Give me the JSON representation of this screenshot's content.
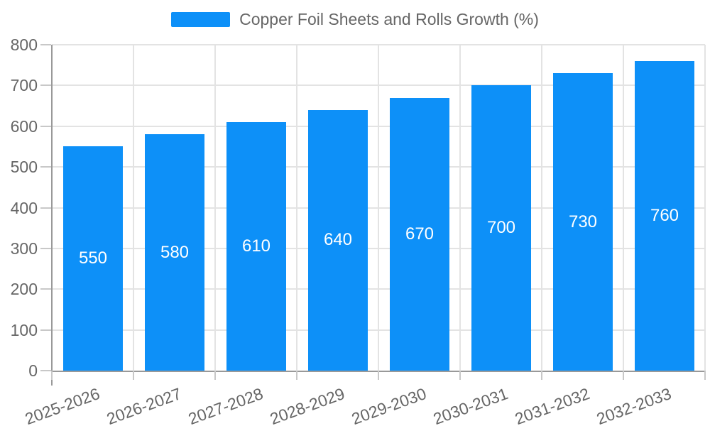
{
  "chart_data": {
    "type": "bar",
    "title": "Copper Foil Sheets and Rolls Growth (%)",
    "categories": [
      "2025-2026",
      "2026-2027",
      "2027-2028",
      "2028-2029",
      "2029-2030",
      "2030-2031",
      "2031-2032",
      "2032-2033"
    ],
    "values": [
      550,
      580,
      610,
      640,
      670,
      700,
      730,
      760
    ],
    "xlabel": "",
    "ylabel": "",
    "ylim": [
      0,
      800
    ],
    "ytick_interval": 100,
    "ytick_labels": [
      "0",
      "100",
      "200",
      "300",
      "400",
      "500",
      "600",
      "700",
      "800"
    ],
    "grid": true,
    "legend_position": "top-center",
    "value_label_position": "inside-center",
    "x_label_rotation_deg": -20,
    "colors": {
      "bar": "#0d90f8",
      "value_label": "#ffffff",
      "axis_label": "#666666",
      "legend_label": "#666666",
      "axis_line": "#999999",
      "tick": "#c8c8c8",
      "gridline": "#e3e3e3",
      "background": "#ffffff"
    }
  }
}
